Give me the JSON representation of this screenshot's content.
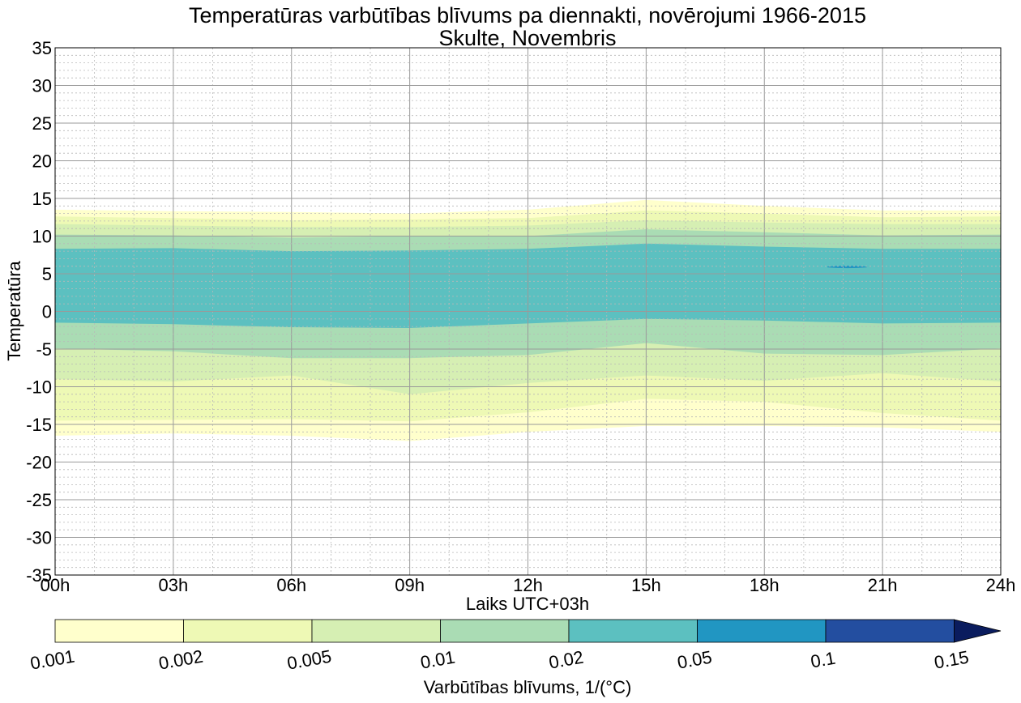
{
  "chart_data": {
    "type": "contourf",
    "title": "Temperatūras varbūtības blīvums pa diennakti, novērojumi 1966-2015",
    "subtitle": "Skulte, Novembris",
    "xlabel": "Laiks UTC+03h",
    "ylabel": "Temperatūra",
    "xlim": [
      0,
      24
    ],
    "ylim": [
      -35,
      35
    ],
    "x_ticks": [
      {
        "value": 0,
        "label": "00h"
      },
      {
        "value": 3,
        "label": "03h"
      },
      {
        "value": 6,
        "label": "06h"
      },
      {
        "value": 9,
        "label": "09h"
      },
      {
        "value": 12,
        "label": "12h"
      },
      {
        "value": 15,
        "label": "15h"
      },
      {
        "value": 18,
        "label": "18h"
      },
      {
        "value": 21,
        "label": "21h"
      },
      {
        "value": 24,
        "label": "24h"
      }
    ],
    "y_ticks": [
      {
        "value": 35,
        "label": "35"
      },
      {
        "value": 30,
        "label": "30"
      },
      {
        "value": 25,
        "label": "25"
      },
      {
        "value": 20,
        "label": "20"
      },
      {
        "value": 15,
        "label": "15"
      },
      {
        "value": 10,
        "label": "10"
      },
      {
        "value": 5,
        "label": "5"
      },
      {
        "value": 0,
        "label": "0"
      },
      {
        "value": -5,
        "label": "-5"
      },
      {
        "value": -10,
        "label": "-10"
      },
      {
        "value": -15,
        "label": "-15"
      },
      {
        "value": -20,
        "label": "-20"
      },
      {
        "value": -25,
        "label": "-25"
      },
      {
        "value": -30,
        "label": "-30"
      },
      {
        "value": -35,
        "label": "-35"
      }
    ],
    "grid": true,
    "colorbar": {
      "label": "Varbūtības blīvums, 1/(°C)",
      "orientation": "horizontal",
      "extend": "max",
      "levels": [
        0.001,
        0.002,
        0.005,
        0.01,
        0.02,
        0.05,
        0.1,
        0.15
      ],
      "tick_labels": [
        "0.001",
        "0.002",
        "0.005",
        "0.01",
        "0.02",
        "0.05",
        "0.1",
        "0.15"
      ],
      "colors": [
        "#ffffcc",
        "#eef9b5",
        "#d6efb3",
        "#aadcb4",
        "#5cc0c0",
        "#2196c2",
        "#234ea0",
        "#0a1c5e"
      ]
    },
    "bands": [
      {
        "level_index": 0,
        "x": [
          0,
          3,
          6,
          9,
          12,
          15,
          18,
          21,
          24
        ],
        "lower": [
          -16.5,
          -16.2,
          -16.5,
          -17.2,
          -16.0,
          -15.2,
          -15.2,
          -15.4,
          -16.0
        ],
        "upper": [
          13.5,
          13.3,
          13.2,
          13.0,
          13.5,
          14.8,
          14.0,
          13.4,
          13.4
        ]
      },
      {
        "level_index": 1,
        "x": [
          0,
          3,
          6,
          9,
          12,
          15,
          18,
          21,
          24
        ],
        "lower": [
          -14.5,
          -14.4,
          -14.3,
          -14.6,
          -13.4,
          -11.6,
          -12.0,
          -13.5,
          -14.5
        ],
        "upper": [
          12.6,
          12.4,
          12.1,
          12.2,
          12.4,
          13.4,
          13.0,
          12.5,
          12.6
        ]
      },
      {
        "level_index": 2,
        "x": [
          0,
          3,
          6,
          9,
          12,
          15,
          18,
          21,
          24
        ],
        "lower": [
          -9.0,
          -9.3,
          -8.5,
          -11.0,
          -9.5,
          -8.5,
          -9.2,
          -8.2,
          -9.3
        ],
        "upper": [
          11.6,
          11.4,
          11.2,
          11.2,
          11.4,
          12.1,
          11.8,
          11.6,
          11.6
        ]
      },
      {
        "level_index": 3,
        "x": [
          0,
          3,
          6,
          9,
          12,
          15,
          18,
          21,
          24
        ],
        "lower": [
          -4.9,
          -5.3,
          -6.2,
          -6.2,
          -5.8,
          -4.2,
          -5.6,
          -5.8,
          -4.9
        ],
        "upper": [
          10.2,
          10.1,
          9.8,
          10.0,
          10.0,
          10.9,
          10.5,
          10.1,
          10.2
        ]
      },
      {
        "level_index": 4,
        "x": [
          0,
          3,
          6,
          9,
          12,
          15,
          18,
          21,
          24
        ],
        "lower": [
          -1.5,
          -1.7,
          -2.1,
          -2.2,
          -1.6,
          -1.0,
          -1.2,
          -1.6,
          -1.5
        ],
        "upper": [
          8.3,
          8.4,
          8.0,
          8.1,
          8.3,
          9.0,
          8.6,
          8.3,
          8.3
        ]
      }
    ],
    "spots": [
      {
        "level_index": 5,
        "x0": 19.6,
        "x1": 20.6,
        "y": 5.9
      }
    ]
  }
}
